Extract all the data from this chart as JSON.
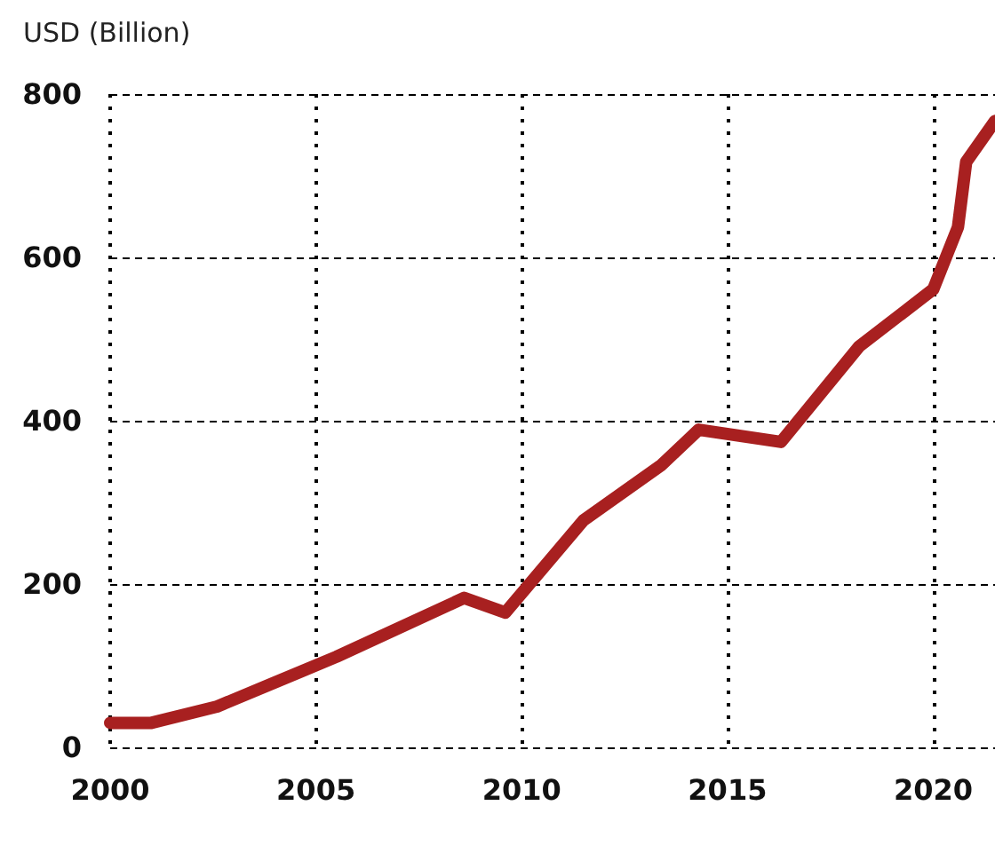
{
  "chart_data": {
    "type": "line",
    "ylabel": "USD (Billion)",
    "x": [
      2000,
      2001,
      2002.6,
      2005.5,
      2008.6,
      2009.6,
      2011.5,
      2013.4,
      2014.3,
      2016.3,
      2018.2,
      2020,
      2020.6,
      2020.8,
      2021.5
    ],
    "series": [
      {
        "color": "#a82020",
        "values": [
          30,
          30,
          50,
          111,
          183,
          165,
          278,
          346,
          389,
          374,
          491,
          561,
          637,
          717,
          767
        ]
      }
    ],
    "xlim": [
      2000,
      2021.5
    ],
    "xticks": [
      2000,
      2005,
      2010,
      2015,
      2020
    ],
    "ylim": [
      0,
      800
    ],
    "yticks": [
      0,
      200,
      400,
      600,
      800
    ],
    "grid": true,
    "line_style": "solid"
  }
}
